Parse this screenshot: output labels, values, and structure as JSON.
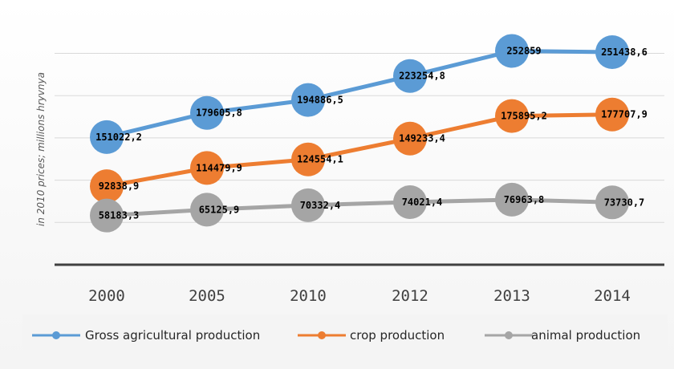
{
  "chart_data": {
    "type": "line",
    "categories": [
      "2000",
      "2005",
      "2010",
      "2012",
      "2013",
      "2014"
    ],
    "ylabel": "in 2010 prices; millions hryvnya",
    "ylim": [
      0,
      260000
    ],
    "grid": true,
    "legend_position": "bottom",
    "series": [
      {
        "name": "Gross agricultural production",
        "color": "#5b9bd5",
        "values": [
          151022.2,
          179605.8,
          194886.5,
          223254.8,
          252859,
          251438.6
        ],
        "labels": [
          "151022,2",
          "179605,8",
          "194886,5",
          "223254,8",
          "252859",
          "251438,6"
        ]
      },
      {
        "name": "crop production",
        "color": "#ed7d31",
        "values": [
          92838.9,
          114479.9,
          124554.1,
          149233.4,
          175895.2,
          177707.9
        ],
        "labels": [
          "92838,9",
          "114479,9",
          "124554,1",
          "149233,4",
          "175895,2",
          "177707,9"
        ]
      },
      {
        "name": "animal production",
        "color": "#a5a5a5",
        "values": [
          58183.3,
          65125.9,
          70332.4,
          74021.4,
          76963.8,
          73730.7
        ],
        "labels": [
          "58183,3",
          "65125,9",
          "70332,4",
          "74021,4",
          "76963,8",
          "73730,7"
        ]
      }
    ]
  }
}
